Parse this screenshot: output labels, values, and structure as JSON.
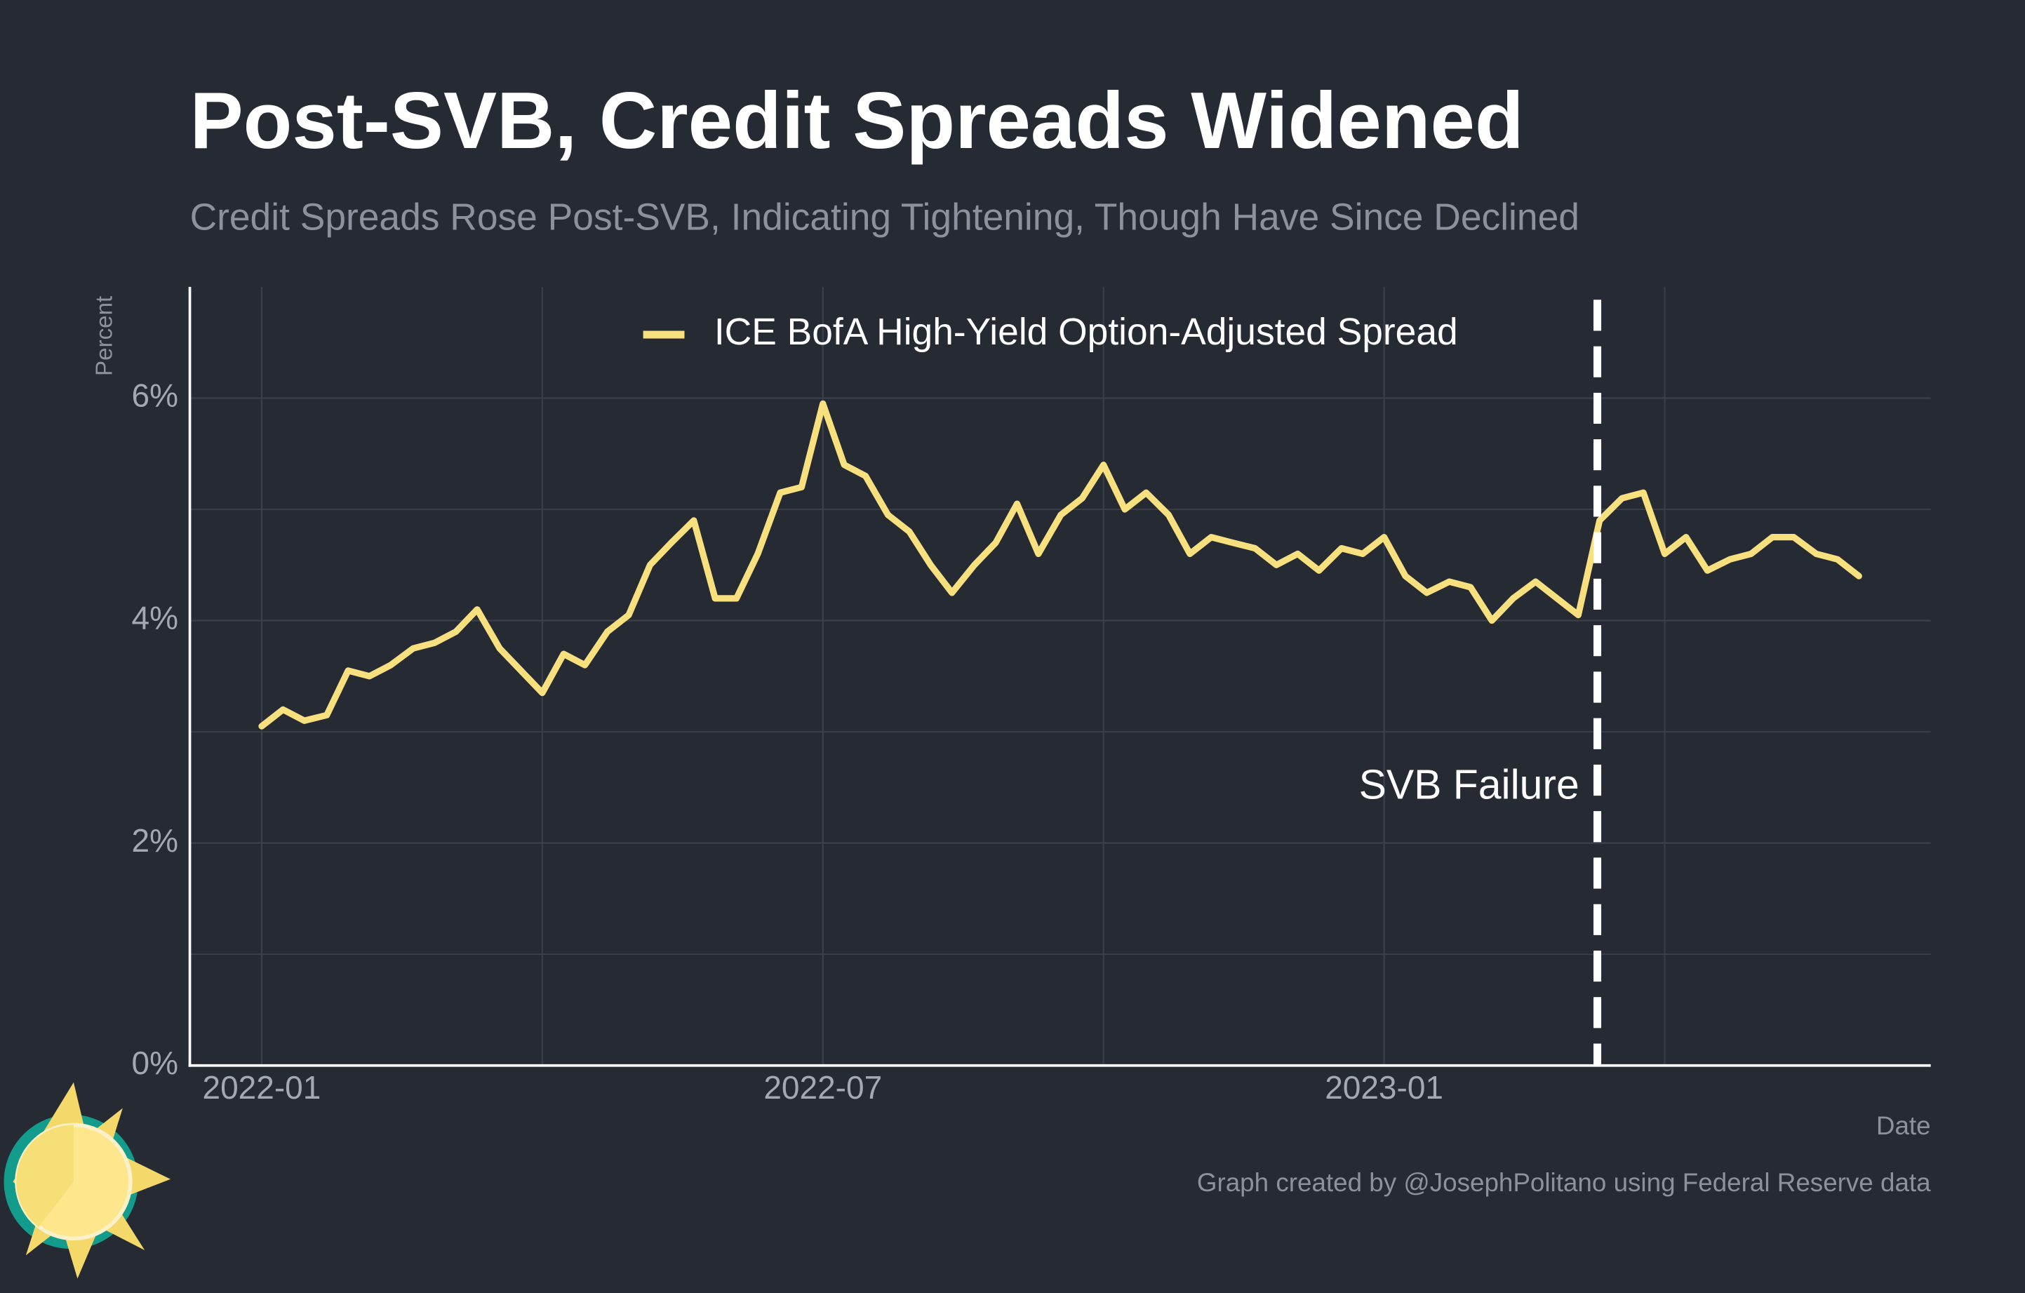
{
  "chart_data": {
    "type": "line",
    "title": "Post-SVB, Credit Spreads Widened",
    "subtitle": "Credit Spreads Rose Post-SVB, Indicating Tightening, Though Have Since Declined",
    "ylabel": "Percent",
    "xlabel": "Date",
    "caption": "Graph created by @JosephPolitano using Federal Reserve data",
    "x": [
      2022.0,
      2022.019,
      2022.038,
      2022.058,
      2022.077,
      2022.096,
      2022.115,
      2022.135,
      2022.154,
      2022.173,
      2022.192,
      2022.212,
      2022.231,
      2022.25,
      2022.269,
      2022.288,
      2022.308,
      2022.327,
      2022.346,
      2022.365,
      2022.385,
      2022.404,
      2022.423,
      2022.442,
      2022.462,
      2022.481,
      2022.5,
      2022.519,
      2022.538,
      2022.558,
      2022.577,
      2022.596,
      2022.615,
      2022.635,
      2022.654,
      2022.673,
      2022.692,
      2022.712,
      2022.731,
      2022.75,
      2022.769,
      2022.788,
      2022.808,
      2022.827,
      2022.846,
      2022.865,
      2022.885,
      2022.904,
      2022.923,
      2022.942,
      2022.962,
      2022.981,
      2023.0,
      2023.019,
      2023.038,
      2023.058,
      2023.077,
      2023.096,
      2023.115,
      2023.135,
      2023.154,
      2023.173,
      2023.192,
      2023.212,
      2023.231,
      2023.25,
      2023.269,
      2023.288,
      2023.308,
      2023.327,
      2023.346,
      2023.365,
      2023.385,
      2023.404,
      2023.423
    ],
    "series": [
      {
        "name": "ICE BofA High-Yield Option-Adjusted Spread",
        "color": "#f9e07f",
        "values": [
          3.05,
          3.2,
          3.1,
          3.15,
          3.55,
          3.5,
          3.6,
          3.75,
          3.8,
          3.9,
          4.1,
          3.75,
          3.55,
          3.35,
          3.7,
          3.6,
          3.9,
          4.05,
          4.5,
          4.7,
          4.9,
          4.2,
          4.2,
          4.6,
          5.15,
          5.2,
          5.95,
          5.4,
          5.3,
          4.95,
          4.8,
          4.5,
          4.25,
          4.5,
          4.7,
          5.05,
          4.6,
          4.95,
          5.1,
          5.4,
          5.0,
          5.15,
          4.95,
          4.6,
          4.75,
          4.7,
          4.65,
          4.5,
          4.6,
          4.45,
          4.65,
          4.6,
          4.75,
          4.4,
          4.25,
          4.35,
          4.3,
          4.0,
          4.2,
          4.35,
          4.2,
          4.05,
          4.9,
          5.1,
          5.15,
          4.6,
          4.75,
          4.45,
          4.55,
          4.6,
          4.75,
          4.75,
          4.6,
          4.55,
          4.4
        ]
      }
    ],
    "xlim": [
      2021.936,
      2023.487
    ],
    "xticks": [
      {
        "value": 2022.0,
        "label": "2022-01"
      },
      {
        "value": 2022.5,
        "label": "2022-07"
      },
      {
        "value": 2023.0,
        "label": "2023-01"
      }
    ],
    "xminor": [
      2022.25,
      2022.75,
      2023.25
    ],
    "ylim": [
      0,
      7
    ],
    "yticks": [
      {
        "value": 0,
        "label": "0%"
      },
      {
        "value": 2,
        "label": "2%"
      },
      {
        "value": 4,
        "label": "4%"
      },
      {
        "value": 6,
        "label": "6%"
      }
    ],
    "yminor": [
      1,
      3,
      5
    ],
    "grid": true,
    "vline": {
      "x": 2023.19,
      "label": "SVB Failure"
    }
  }
}
